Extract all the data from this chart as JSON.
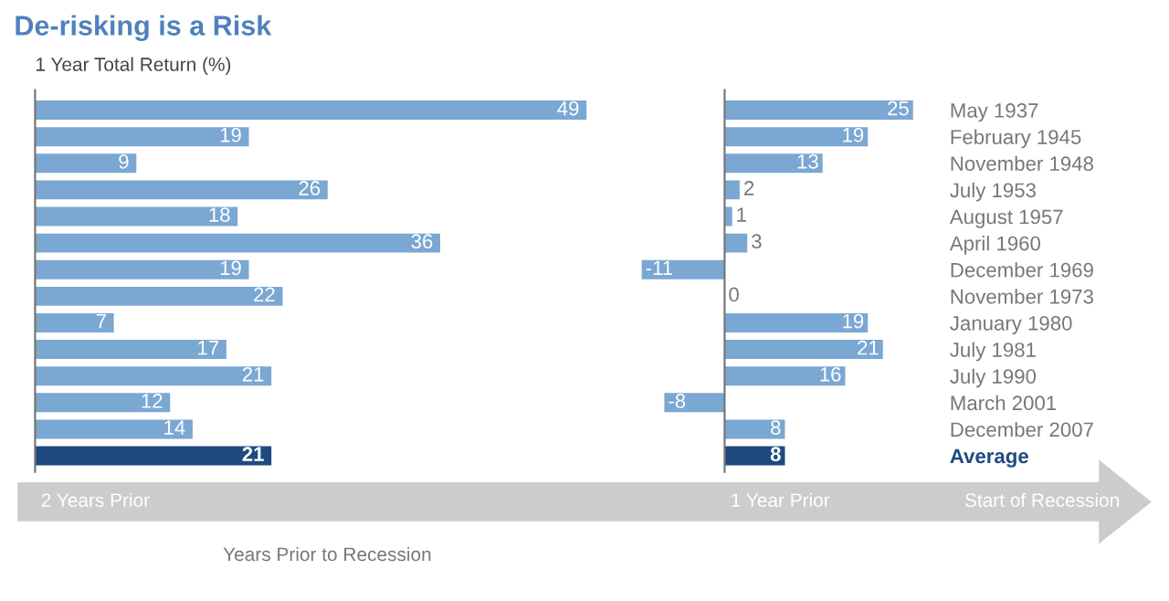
{
  "chart_data": [
    {
      "type": "bar",
      "orientation": "horizontal",
      "title": "De-risking is a Risk",
      "ylabel": "1 Year Total Return (%)",
      "xlabel": "Years Prior to Recession",
      "annotations": [
        "2 Years Prior",
        "1 Year Prior",
        "Start of Recession"
      ],
      "categories": [
        null,
        null,
        null,
        null,
        null,
        null,
        null,
        null,
        null,
        null,
        null,
        null,
        null,
        null
      ],
      "values": [
        49,
        19,
        9,
        26,
        18,
        36,
        19,
        22,
        7,
        17,
        21,
        12,
        14,
        21
      ],
      "colors": [
        "#7ba7d3",
        "#7ba7d3",
        "#7ba7d3",
        "#7ba7d3",
        "#7ba7d3",
        "#7ba7d3",
        "#7ba7d3",
        "#7ba7d3",
        "#7ba7d3",
        "#7ba7d3",
        "#7ba7d3",
        "#7ba7d3",
        "#7ba7d3",
        "#1f4a80"
      ],
      "data_labels": true,
      "tick_labels": false,
      "grid": false,
      "legend": false
    },
    {
      "type": "bar",
      "orientation": "horizontal",
      "categories": [
        "May 1937",
        "February 1945",
        "November 1948",
        "July 1953",
        "August 1957",
        "April 1960",
        "December 1969",
        "November 1973",
        "January 1980",
        "July 1981",
        "July 1990",
        "March 2001",
        "December 2007",
        "Average"
      ],
      "values": [
        25,
        19,
        13,
        2,
        1,
        3,
        -11,
        0,
        19,
        21,
        16,
        -8,
        8,
        8
      ],
      "colors": [
        "#7ba7d3",
        "#7ba7d3",
        "#7ba7d3",
        "#7ba7d3",
        "#7ba7d3",
        "#7ba7d3",
        "#7ba7d3",
        "#7ba7d3",
        "#7ba7d3",
        "#7ba7d3",
        "#7ba7d3",
        "#7ba7d3",
        "#7ba7d3",
        "#1f4a80"
      ],
      "data_labels": true,
      "tick_labels": "y",
      "grid": false,
      "legend": false
    }
  ]
}
